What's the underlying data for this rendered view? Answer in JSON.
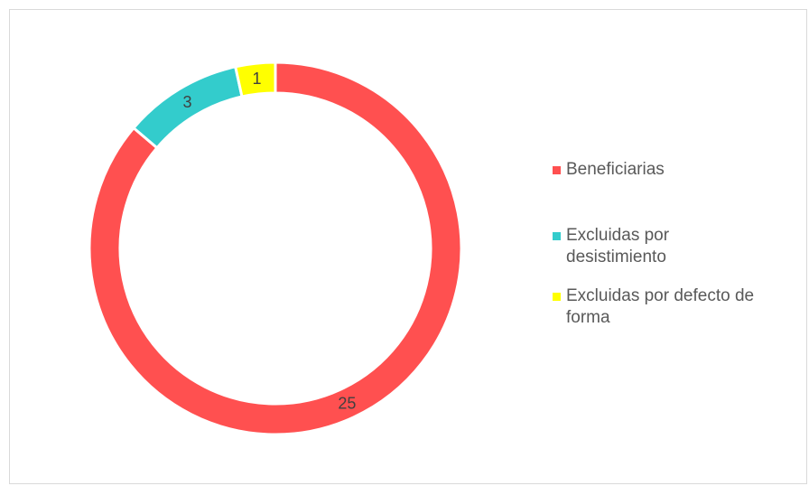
{
  "chart_data": {
    "type": "pie",
    "variant": "donut",
    "legend_position": "right",
    "series": [
      {
        "values": [
          25,
          3,
          1
        ],
        "categories": [
          "Beneficiarias",
          "Excluidas por desistimiento",
          "Excluidas por defecto de forma"
        ],
        "colors": [
          "#ff5050",
          "#33cccc",
          "#ffff00"
        ]
      }
    ]
  },
  "legend": {
    "items": [
      {
        "label": "Beneficiarias",
        "color": "#ff5050"
      },
      {
        "label": "Excluidas por desistimiento",
        "color": "#33cccc"
      },
      {
        "label": "Excluidas por defecto de forma",
        "color": "#ffff00"
      }
    ]
  },
  "data_labels": [
    "25",
    "3",
    "1"
  ]
}
